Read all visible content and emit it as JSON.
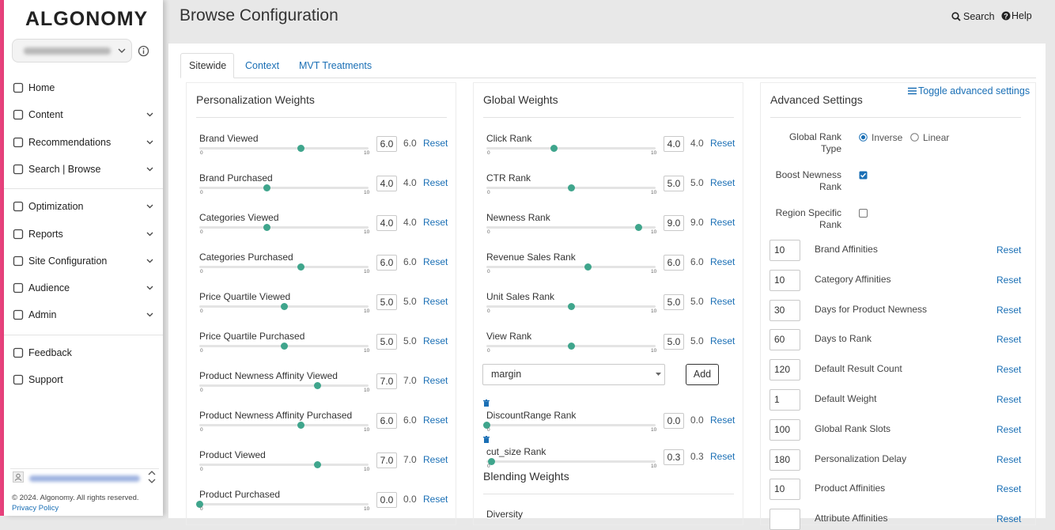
{
  "sidebar": {
    "logo": "ALGONOMY",
    "groups": [
      [
        {
          "label": "Home",
          "expandable": false
        },
        {
          "label": "Content",
          "expandable": true
        },
        {
          "label": "Recommendations",
          "expandable": true
        },
        {
          "label": "Search | Browse",
          "expandable": true
        }
      ],
      [
        {
          "label": "Optimization",
          "expandable": true
        },
        {
          "label": "Reports",
          "expandable": true
        },
        {
          "label": "Site Configuration",
          "expandable": true
        },
        {
          "label": "Audience",
          "expandable": true
        },
        {
          "label": "Admin",
          "expandable": true
        }
      ],
      [
        {
          "label": "Feedback",
          "expandable": false
        },
        {
          "label": "Support",
          "expandable": false
        }
      ]
    ],
    "footer": {
      "copyright": "© 2024. Algonomy. All rights reserved.",
      "privacy": "Privacy Policy"
    }
  },
  "header": {
    "title": "Browse Configuration",
    "search": "Search",
    "help": "Help"
  },
  "tabs": {
    "items": [
      "Sitewide",
      "Context",
      "MVT Treatments"
    ],
    "active": 0
  },
  "slider_scale": {
    "min": "0",
    "max": "10"
  },
  "reset_label": "Reset",
  "personalization": {
    "title": "Personalization Weights",
    "rows": [
      {
        "label": "Brand Viewed",
        "input": "6.0",
        "value": "6.0"
      },
      {
        "label": "Brand Purchased",
        "input": "4.0",
        "value": "4.0"
      },
      {
        "label": "Categories Viewed",
        "input": "4.0",
        "value": "4.0"
      },
      {
        "label": "Categories Purchased",
        "input": "6.0",
        "value": "6.0"
      },
      {
        "label": "Price Quartile Viewed",
        "input": "5.0",
        "value": "5.0"
      },
      {
        "label": "Price Quartile Purchased",
        "input": "5.0",
        "value": "5.0"
      },
      {
        "label": "Product Newness Affinity Viewed",
        "input": "7.0",
        "value": "7.0"
      },
      {
        "label": "Product Newness Affinity Purchased",
        "input": "6.0",
        "value": "6.0"
      },
      {
        "label": "Product Viewed",
        "input": "7.0",
        "value": "7.0"
      },
      {
        "label": "Product Purchased",
        "input": "0.0",
        "value": "0.0"
      }
    ]
  },
  "global": {
    "title": "Global Weights",
    "rows": [
      {
        "label": "Click Rank",
        "input": "4.0",
        "value": "4.0"
      },
      {
        "label": "CTR Rank",
        "input": "5.0",
        "value": "5.0"
      },
      {
        "label": "Newness Rank",
        "input": "9.0",
        "value": "9.0"
      },
      {
        "label": "Revenue Sales Rank",
        "input": "6.0",
        "value": "6.0"
      },
      {
        "label": "Unit Sales Rank",
        "input": "5.0",
        "value": "5.0"
      },
      {
        "label": "View Rank",
        "input": "5.0",
        "value": "5.0"
      }
    ],
    "select": "margin",
    "add": "Add",
    "custom_rows": [
      {
        "label": "DiscountRange Rank",
        "input": "0.0",
        "value": "0.0"
      },
      {
        "label": "cut_size Rank",
        "input": "0.3",
        "value": "0.3"
      }
    ]
  },
  "blending": {
    "title": "Blending Weights",
    "rows": [
      {
        "label": "Diversity"
      }
    ]
  },
  "advanced": {
    "title": "Advanced Settings",
    "toggle": "Toggle advanced settings",
    "options": [
      {
        "label": "Global Rank Type",
        "control": "radio",
        "choices": [
          "Inverse",
          "Linear"
        ],
        "selected": 0
      },
      {
        "label": "Boost Newness Rank",
        "control": "checkbox",
        "checked": true
      },
      {
        "label": "Region Specific Rank",
        "control": "checkbox",
        "checked": false
      }
    ],
    "fields": [
      {
        "value": "10",
        "label": "Brand Affinities"
      },
      {
        "value": "10",
        "label": "Category Affinities"
      },
      {
        "value": "30",
        "label": "Days for Product Newness"
      },
      {
        "value": "60",
        "label": "Days to Rank"
      },
      {
        "value": "120",
        "label": "Default Result Count"
      },
      {
        "value": "1",
        "label": "Default Weight"
      },
      {
        "value": "100",
        "label": "Global Rank Slots"
      },
      {
        "value": "180",
        "label": "Personalization Delay"
      },
      {
        "value": "10",
        "label": "Product Affinities"
      },
      {
        "label": "Attribute Affinities"
      }
    ]
  }
}
